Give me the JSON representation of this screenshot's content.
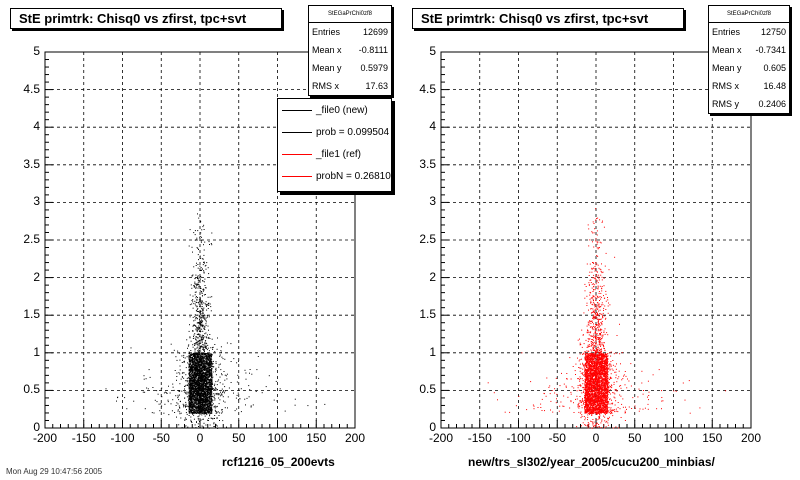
{
  "chart_data": [
    {
      "type": "scatter",
      "title": "StE primtrk: Chisq0 vs zfirst, tpc+svt",
      "xlabel": "rcf1216_05_200evts",
      "ylabel": "",
      "xlim": [
        -200,
        200
      ],
      "ylim": [
        0,
        5
      ],
      "x_ticks": [
        "-200",
        "-150",
        "-100",
        "-50",
        "0",
        "50",
        "100",
        "150",
        "200"
      ],
      "y_ticks": [
        "0",
        "0.5",
        "1",
        "1.5",
        "2",
        "2.5",
        "3",
        "3.5",
        "4",
        "4.5",
        "5"
      ],
      "grid": true,
      "marker_color": "#000000",
      "core_x": [
        -15,
        15
      ],
      "core_y": [
        0.2,
        1.0
      ],
      "stats": {
        "title": "StEGaPrChi0zf8",
        "rows": [
          {
            "label": "Entries",
            "value": "12699"
          },
          {
            "label": "Mean x",
            "value": "-0.8111"
          },
          {
            "label": "Mean y",
            "value": "0.5979"
          },
          {
            "label": "RMS x",
            "value": "17.63"
          }
        ]
      },
      "legend": {
        "placement": "top-right",
        "entries": [
          {
            "label": "_file0 (new)",
            "color": "#000000"
          },
          {
            "label": "prob = 0.099504",
            "color": "#000000"
          },
          {
            "label": "_file1 (ref)",
            "color": "#ff0000"
          },
          {
            "label": "probN = 0.268101",
            "color": "#ff0000"
          }
        ]
      }
    },
    {
      "type": "scatter",
      "title": "StE primtrk: Chisq0 vs zfirst, tpc+svt",
      "xlabel": "new/trs_sl302/year_2005/cucu200_minbias/",
      "ylabel": "",
      "xlim": [
        -200,
        200
      ],
      "ylim": [
        0,
        5
      ],
      "x_ticks": [
        "-200",
        "-150",
        "-100",
        "-50",
        "0",
        "50",
        "100",
        "150",
        "200"
      ],
      "y_ticks": [
        "0",
        "0.5",
        "1",
        "1.5",
        "2",
        "2.5",
        "3",
        "3.5",
        "4",
        "4.5",
        "5"
      ],
      "grid": true,
      "marker_color": "#ff0000",
      "core_x": [
        -15,
        15
      ],
      "core_y": [
        0.2,
        1.0
      ],
      "stats": {
        "title": "StEGaPrChi0zf8",
        "rows": [
          {
            "label": "Entries",
            "value": "12750"
          },
          {
            "label": "Mean x",
            "value": "-0.7341"
          },
          {
            "label": "Mean y",
            "value": "0.605"
          },
          {
            "label": "RMS x",
            "value": "16.48"
          },
          {
            "label": "RMS y",
            "value": "0.2406"
          }
        ]
      }
    }
  ],
  "footer": "Mon Aug 29 10:47:56 2005"
}
